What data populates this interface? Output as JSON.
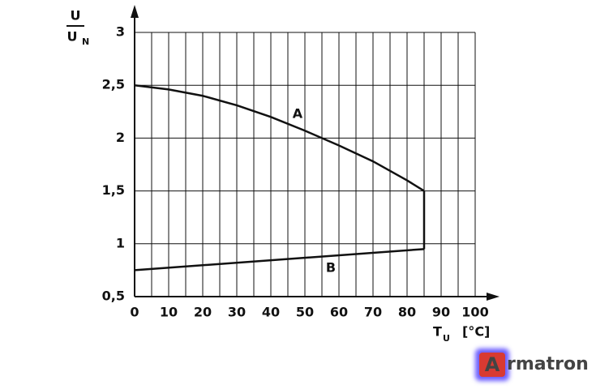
{
  "chart_data": {
    "type": "line",
    "ylabel_numerator": "U",
    "ylabel_denominator": "U",
    "ylabel_denominator_subscript": "N",
    "xlabel": "T",
    "xlabel_subscript": "U",
    "xunit": "[°C]",
    "xlim": [
      0,
      100
    ],
    "xticks": [
      0,
      10,
      20,
      30,
      40,
      50,
      60,
      70,
      80,
      90,
      100
    ],
    "x_minor_ticks": [
      5,
      15,
      25,
      35,
      45,
      55,
      65,
      75,
      85,
      95
    ],
    "ylim": [
      0.5,
      3
    ],
    "yticks": [
      {
        "value": 0.5,
        "label": "0,5"
      },
      1,
      {
        "value": 1.5,
        "label": "1,5"
      },
      2,
      {
        "value": 2.5,
        "label": "2,5"
      },
      3
    ],
    "grid": true,
    "series": [
      {
        "name": "A",
        "color": "#111111",
        "x": [
          0,
          10,
          20,
          30,
          40,
          50,
          60,
          70,
          80,
          85
        ],
        "values": [
          2.5,
          2.46,
          2.4,
          2.31,
          2.2,
          2.07,
          1.93,
          1.78,
          1.6,
          1.5
        ]
      },
      {
        "name": "B",
        "color": "#111111",
        "x": [
          0,
          85
        ],
        "values": [
          0.75,
          0.95
        ]
      }
    ],
    "logo_letter": "A",
    "logo_text": "rmatron"
  }
}
